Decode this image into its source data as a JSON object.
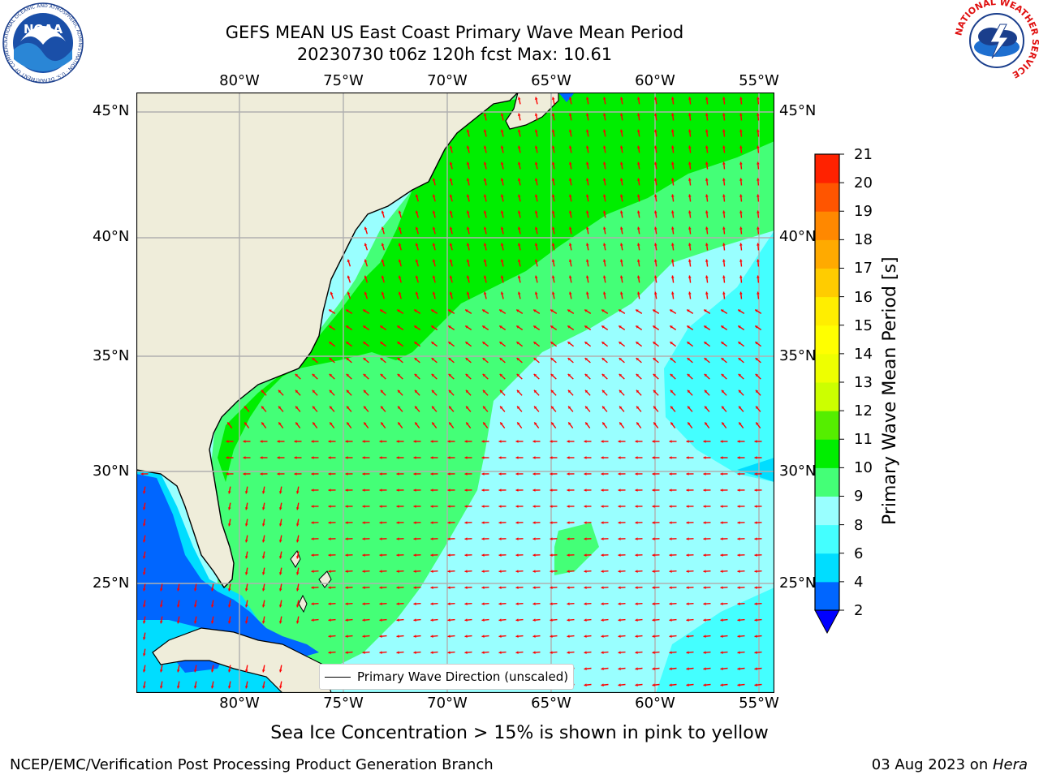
{
  "title": {
    "line1": "GEFS MEAN US East Coast Primary Wave Mean Period",
    "line2": "20230730 t06z 120h fcst   Max: 10.61"
  },
  "map": {
    "lon_labels": [
      "80°W",
      "75°W",
      "70°W",
      "65°W",
      "60°W",
      "55°W"
    ],
    "lat_labels": [
      "45°N",
      "40°N",
      "35°N",
      "30°N",
      "25°N"
    ],
    "lon_range": [
      -85,
      -53.2
    ],
    "lat_range": [
      20.5,
      46
    ],
    "land_color": "#efedda",
    "legend_label": "Primary Wave Direction (unscaled)",
    "arrow_color": "#ff0000"
  },
  "colorbar": {
    "label": "Primary Wave Mean Period [s]",
    "ticks": [
      "2",
      "4",
      "6",
      "8",
      "9",
      "10",
      "11",
      "12",
      "13",
      "14",
      "15",
      "16",
      "17",
      "18",
      "19",
      "20",
      "21"
    ],
    "colors": [
      "#0066ff",
      "#00ddff",
      "#44ffff",
      "#99ffff",
      "#44ff77",
      "#00ee00",
      "#55ee00",
      "#ccff00",
      "#eeff00",
      "#ffff00",
      "#ffee00",
      "#ffcc00",
      "#ffaa00",
      "#ff8800",
      "#ff5500",
      "#ff2200"
    ],
    "under_color": "#0000ff"
  },
  "subtitle": "Sea Ice Concentration > 15% is shown in pink to yellow",
  "footer": {
    "left": "NCEP/EMC/Verification Post Processing Product Generation Branch",
    "date": "03 Aug 2023 on ",
    "machine": "Hera"
  },
  "logos": {
    "noaa": "NOAA",
    "noaa_ring": "NATIONAL OCEANIC AND ATMOSPHERIC ADMINISTRATION · U.S. DEPARTMENT OF COMMERCE",
    "nws_ring": "NATIONAL WEATHER SERVICE"
  }
}
